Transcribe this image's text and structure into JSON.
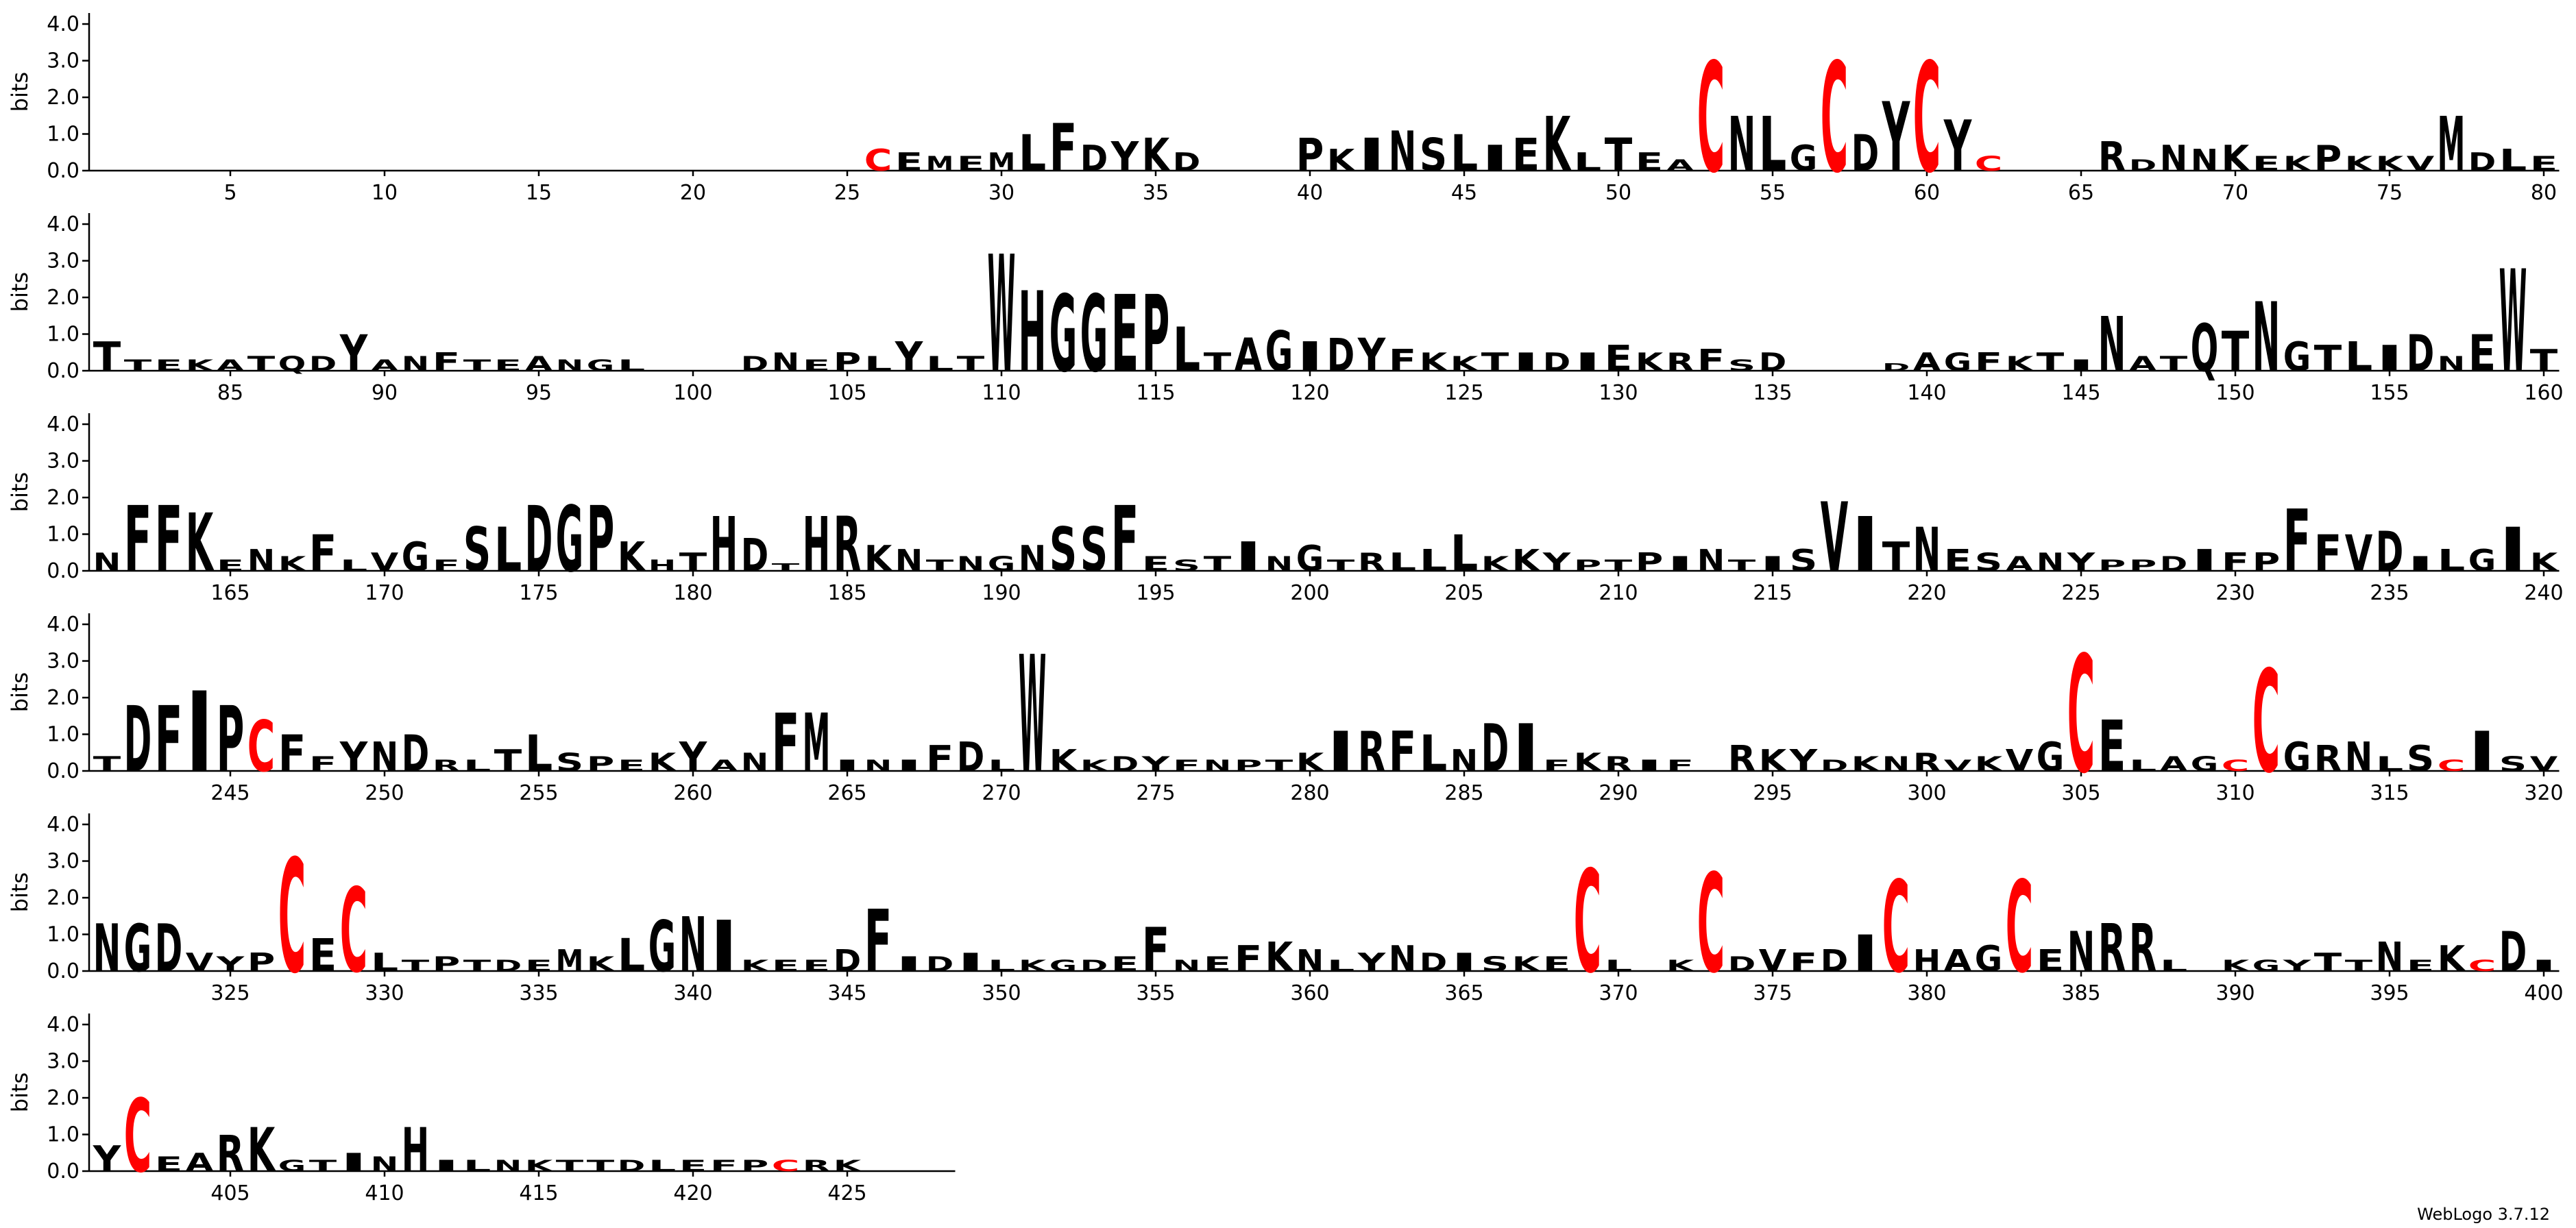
{
  "chart_data": {
    "type": "sequence_logo",
    "ylabel": "bits",
    "credit": "WebLogo 3.7.12",
    "ylim": [
      0,
      4.3
    ],
    "yticks": [
      {
        "value": 0,
        "label": "0.0"
      },
      {
        "value": 1,
        "label": "1.0"
      },
      {
        "value": 2,
        "label": "2.0"
      },
      {
        "value": 3,
        "label": "3.0"
      },
      {
        "value": 4,
        "label": "4.0"
      }
    ],
    "xticks": [
      5,
      10,
      15,
      20,
      25,
      30,
      35,
      40,
      45,
      50,
      55,
      60,
      65,
      70,
      75,
      80,
      85,
      90,
      95,
      100,
      105,
      110,
      115,
      120,
      125,
      130,
      135,
      140,
      145,
      150,
      155,
      160,
      165,
      170,
      175,
      180,
      185,
      190,
      195,
      200,
      205,
      210,
      215,
      220,
      225,
      230,
      235,
      240,
      245,
      250,
      255,
      260,
      265,
      270,
      275,
      280,
      285,
      290,
      295,
      300,
      305,
      310,
      315,
      320,
      325,
      330,
      335,
      340,
      345,
      350,
      355,
      360,
      365,
      370,
      375,
      380,
      385,
      390,
      395,
      400,
      405,
      410,
      415,
      420,
      425
    ],
    "colors": {
      "default": "#000000",
      "C": "#ff0000"
    },
    "letters": [
      null,
      null,
      null,
      null,
      null,
      null,
      null,
      null,
      null,
      null,
      null,
      null,
      null,
      null,
      null,
      null,
      null,
      null,
      null,
      null,
      null,
      null,
      null,
      null,
      null,
      "C",
      "E",
      "M",
      "E",
      "M",
      "L",
      "F",
      "D",
      "Y",
      "K",
      "D",
      null,
      null,
      null,
      "P",
      "K",
      "I",
      "N",
      "S",
      "L",
      "I",
      "E",
      "K",
      "L",
      "T",
      "E",
      "A",
      "C",
      "N",
      "L",
      "G",
      "C",
      "D",
      "Y",
      "C",
      "Y",
      "C",
      null,
      null,
      null,
      "R",
      "D",
      "N",
      "N",
      "K",
      "E",
      "K",
      "P",
      "K",
      "K",
      "V",
      "M",
      "D",
      "L",
      "E",
      "T",
      "T",
      "E",
      "K",
      "A",
      "T",
      "Q",
      "D",
      "Y",
      "A",
      "N",
      "F",
      "T",
      "E",
      "A",
      "N",
      "G",
      "L",
      null,
      null,
      null,
      "D",
      "N",
      "E",
      "P",
      "L",
      "Y",
      "L",
      "T",
      "W",
      "H",
      "G",
      "G",
      "E",
      "P",
      "L",
      "T",
      "A",
      "G",
      "I",
      "D",
      "Y",
      "F",
      "K",
      "K",
      "T",
      "I",
      "D",
      "I",
      "E",
      "K",
      "R",
      "F",
      "S",
      "D",
      null,
      null,
      null,
      "D",
      "A",
      "G",
      "F",
      "K",
      "T",
      "I",
      "N",
      "A",
      "T",
      "Q",
      "T",
      "N",
      "G",
      "T",
      "L",
      "I",
      "D",
      "N",
      "E",
      "W",
      "T",
      "N",
      "F",
      "F",
      "K",
      "E",
      "N",
      "K",
      "F",
      "L",
      "V",
      "G",
      "F",
      "S",
      "L",
      "D",
      "G",
      "P",
      "K",
      "H",
      "T",
      "H",
      "D",
      "T",
      "H",
      "R",
      "K",
      "N",
      "T",
      "N",
      "G",
      "N",
      "S",
      "S",
      "F",
      "E",
      "S",
      "T",
      "I",
      "N",
      "G",
      "T",
      "R",
      "L",
      "L",
      "L",
      "K",
      "K",
      "Y",
      "P",
      "T",
      "P",
      "I",
      "N",
      "T",
      "I",
      "S",
      "V",
      "I",
      "T",
      "N",
      "E",
      "S",
      "A",
      "N",
      "Y",
      "P",
      "P",
      "D",
      "I",
      "F",
      "P",
      "F",
      "F",
      "V",
      "D",
      "I",
      "L",
      "G",
      "I",
      "K",
      "T",
      "D",
      "F",
      "I",
      "P",
      "C",
      "F",
      "F",
      "Y",
      "N",
      "D",
      "R",
      "L",
      "T",
      "L",
      "S",
      "P",
      "E",
      "K",
      "Y",
      "A",
      "N",
      "F",
      "M",
      "I",
      "N",
      "I",
      "F",
      "D",
      "L",
      "W",
      "K",
      "K",
      "D",
      "Y",
      "F",
      "N",
      "P",
      "T",
      "K",
      "I",
      "R",
      "F",
      "L",
      "N",
      "D",
      "I",
      "F",
      "K",
      "R",
      "I",
      "F",
      null,
      "R",
      "K",
      "Y",
      "D",
      "K",
      "N",
      "R",
      "V",
      "K",
      "V",
      "G",
      "C",
      "E",
      "L",
      "A",
      "G",
      "C",
      "C",
      "G",
      "R",
      "N",
      "L",
      "S",
      "C",
      "I",
      "S",
      "V",
      "N",
      "G",
      "D",
      "V",
      "Y",
      "P",
      "C",
      "E",
      "C",
      "L",
      "T",
      "P",
      "T",
      "D",
      "E",
      "M",
      "K",
      "L",
      "G",
      "N",
      "I",
      "K",
      "E",
      "E",
      "D",
      "F",
      "I",
      "D",
      "I",
      "L",
      "K",
      "G",
      "D",
      "E",
      "F",
      "N",
      "E",
      "F",
      "K",
      "N",
      "L",
      "Y",
      "N",
      "D",
      "I",
      "S",
      "K",
      "E",
      "C",
      "L",
      null,
      "K",
      "C",
      "D",
      "V",
      "F",
      "D",
      "I",
      "C",
      "H",
      "A",
      "G",
      "C",
      "E",
      "N",
      "R",
      "R",
      "L",
      null,
      "K",
      "G",
      "Y",
      "T",
      "T",
      "N",
      "E",
      "K",
      "C",
      "D",
      "I",
      "Y",
      "C",
      "E",
      "A",
      "R",
      "K",
      "G",
      "T",
      "I",
      "N",
      "H",
      "I",
      "L",
      "N",
      "K",
      "T",
      "T",
      "D",
      "L",
      "E",
      "F",
      "P",
      "C",
      "R",
      "K",
      null,
      null,
      null
    ],
    "bits": [
      null,
      null,
      null,
      null,
      null,
      null,
      null,
      null,
      null,
      null,
      null,
      null,
      null,
      null,
      null,
      null,
      null,
      null,
      null,
      null,
      null,
      null,
      null,
      null,
      null,
      0.6,
      0.5,
      0.4,
      0.4,
      0.5,
      1.0,
      1.3,
      0.7,
      0.8,
      0.9,
      0.5,
      null,
      null,
      null,
      0.9,
      0.6,
      0.9,
      1.1,
      0.9,
      1.0,
      0.7,
      0.9,
      1.5,
      0.5,
      0.9,
      0.5,
      0.3,
      3.0,
      1.5,
      1.5,
      0.7,
      3.0,
      1.0,
      1.9,
      3.0,
      1.4,
      0.4,
      null,
      null,
      null,
      0.8,
      0.3,
      0.7,
      0.6,
      0.7,
      0.4,
      0.4,
      0.7,
      0.4,
      0.4,
      0.4,
      1.5,
      0.5,
      0.6,
      0.4,
      0.8,
      0.3,
      0.3,
      0.3,
      0.3,
      0.4,
      0.4,
      0.4,
      1.0,
      0.3,
      0.4,
      0.5,
      0.3,
      0.3,
      0.4,
      0.3,
      0.3,
      0.3,
      null,
      null,
      null,
      0.4,
      0.5,
      0.3,
      0.5,
      0.4,
      0.8,
      0.4,
      0.4,
      3.2,
      2.2,
      2.1,
      2.1,
      2.1,
      2.1,
      1.2,
      0.5,
      0.9,
      1.1,
      0.8,
      0.9,
      0.9,
      0.6,
      0.5,
      0.4,
      0.5,
      0.5,
      0.5,
      0.5,
      0.7,
      0.5,
      0.5,
      0.6,
      0.3,
      0.5,
      null,
      null,
      null,
      0.2,
      0.5,
      0.5,
      0.5,
      0.4,
      0.5,
      0.3,
      1.5,
      0.4,
      0.4,
      1.3,
      1.1,
      1.9,
      0.8,
      0.7,
      0.8,
      0.7,
      1.0,
      0.4,
      1.0,
      2.8,
      0.6,
      0.5,
      1.8,
      1.8,
      1.6,
      0.3,
      0.6,
      0.4,
      1.0,
      0.3,
      0.5,
      0.8,
      0.3,
      1.2,
      1.2,
      1.8,
      1.8,
      1.8,
      0.8,
      0.3,
      0.5,
      1.5,
      0.9,
      0.2,
      1.5,
      1.5,
      0.7,
      0.6,
      0.3,
      0.4,
      0.4,
      0.7,
      1.2,
      1.2,
      1.8,
      0.4,
      0.3,
      0.4,
      0.8,
      0.4,
      0.7,
      0.3,
      0.5,
      0.5,
      0.6,
      1.0,
      0.4,
      0.6,
      0.5,
      0.3,
      0.3,
      0.5,
      0.4,
      0.6,
      0.3,
      0.4,
      0.6,
      1.9,
      1.5,
      0.8,
      1.2,
      0.6,
      0.5,
      0.4,
      0.5,
      0.5,
      0.3,
      0.3,
      0.4,
      0.6,
      0.5,
      0.5,
      1.7,
      1.0,
      1.0,
      1.1,
      0.4,
      0.6,
      0.6,
      1.2,
      0.5,
      0.4,
      1.8,
      1.8,
      2.2,
      1.8,
      1.4,
      1.0,
      0.4,
      0.8,
      0.8,
      1.0,
      0.3,
      0.3,
      0.6,
      1.0,
      0.5,
      0.4,
      0.3,
      0.5,
      0.8,
      0.3,
      0.5,
      1.6,
      1.6,
      0.3,
      0.3,
      0.3,
      0.7,
      0.8,
      0.3,
      3.2,
      0.6,
      0.3,
      0.4,
      0.4,
      0.3,
      0.3,
      0.3,
      0.3,
      0.5,
      1.1,
      1.1,
      1.1,
      1.0,
      0.6,
      1.3,
      1.3,
      0.3,
      0.5,
      0.4,
      0.3,
      0.3,
      null,
      0.7,
      0.6,
      0.6,
      0.3,
      0.4,
      0.4,
      0.5,
      0.3,
      0.4,
      0.6,
      0.8,
      3.2,
      1.4,
      0.3,
      0.4,
      0.4,
      0.3,
      2.8,
      0.8,
      0.7,
      0.8,
      0.4,
      0.7,
      0.3,
      1.1,
      0.4,
      0.4,
      1.3,
      1.3,
      1.3,
      0.5,
      0.4,
      0.5,
      3.1,
      0.9,
      2.3,
      0.5,
      0.3,
      0.4,
      0.3,
      0.3,
      0.3,
      0.6,
      0.4,
      0.9,
      1.4,
      1.5,
      1.4,
      0.3,
      0.3,
      0.3,
      0.6,
      1.7,
      0.4,
      0.4,
      0.5,
      0.3,
      0.3,
      0.3,
      0.3,
      0.4,
      1.2,
      0.3,
      0.4,
      0.7,
      0.8,
      0.6,
      0.3,
      0.5,
      0.7,
      0.5,
      0.5,
      0.4,
      0.4,
      0.4,
      2.8,
      0.3,
      null,
      0.3,
      2.7,
      0.4,
      0.6,
      0.5,
      0.6,
      1.0,
      2.5,
      0.6,
      0.6,
      0.7,
      2.5,
      0.6,
      1.1,
      1.3,
      1.3,
      0.3,
      null,
      0.3,
      0.3,
      0.3,
      0.5,
      0.3,
      0.8,
      0.3,
      0.7,
      0.3,
      1.1,
      0.3,
      0.7,
      2.0,
      0.4,
      0.5,
      1.0,
      1.2,
      0.3,
      0.3,
      0.5,
      0.4,
      1.2,
      0.3,
      0.3,
      0.3,
      0.3,
      0.3,
      0.3,
      0.3,
      0.3,
      0.3,
      0.3,
      0.3,
      0.3,
      0.3,
      0.3,
      null,
      null,
      null
    ]
  }
}
